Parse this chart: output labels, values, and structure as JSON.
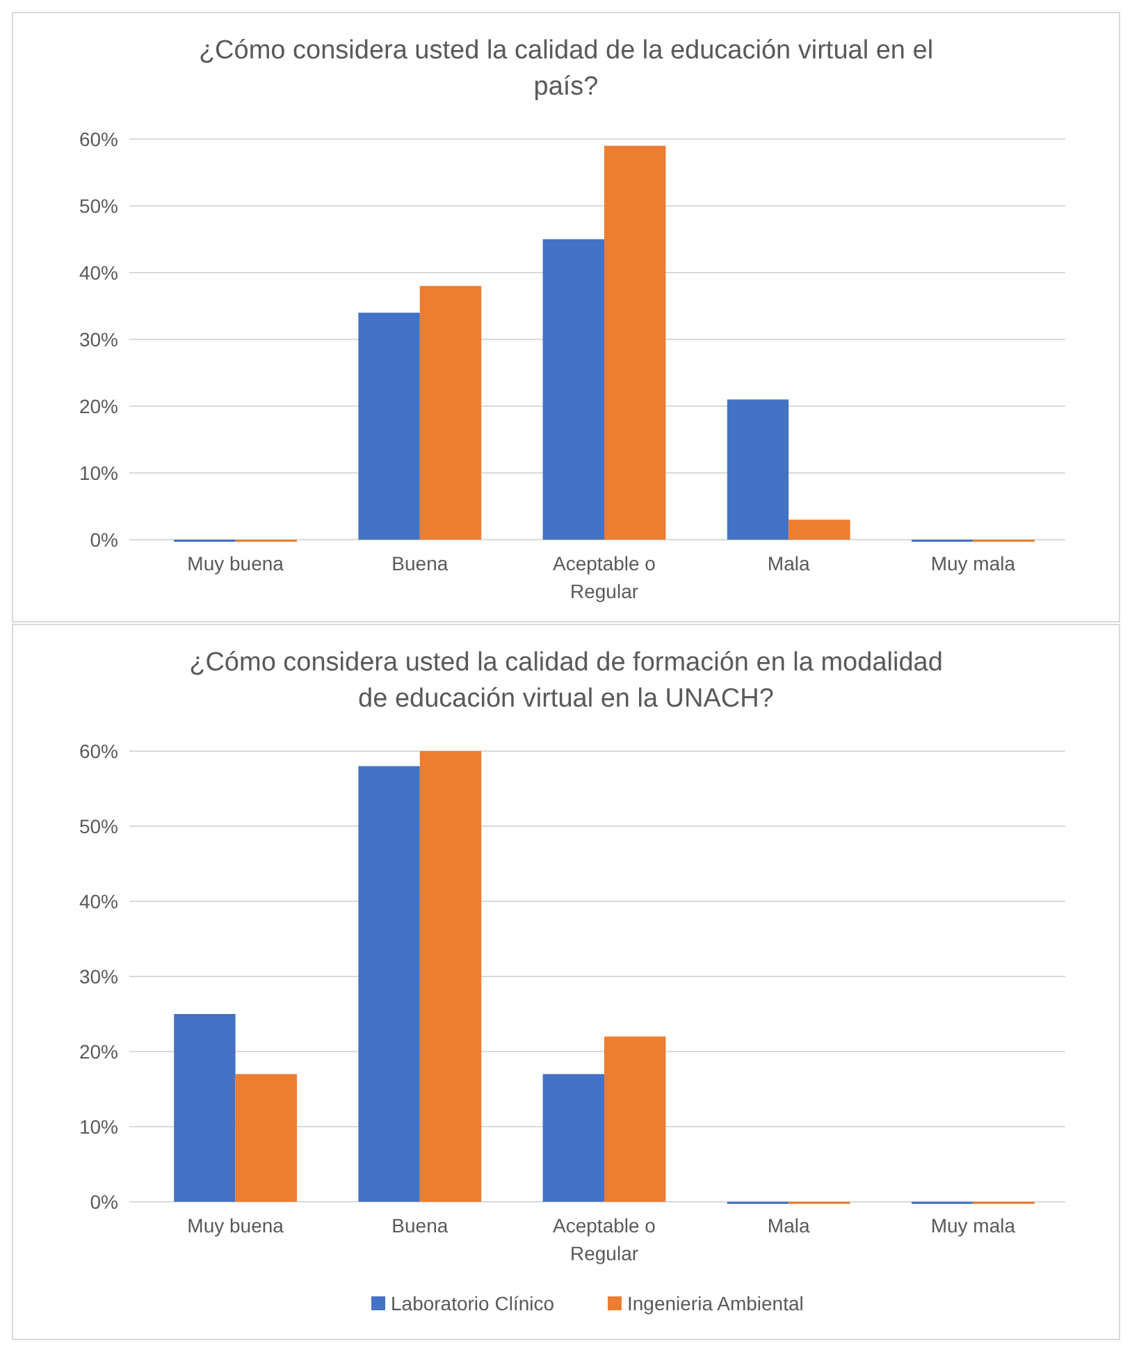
{
  "chart_data": [
    {
      "type": "bar",
      "title": "¿Cómo considera usted la calidad de la educación virtual en el país?",
      "categories": [
        "Muy buena",
        "Buena",
        "Aceptable o Regular",
        "Mala",
        "Muy mala"
      ],
      "series": [
        {
          "color": "#4472c4",
          "values": [
            0,
            34,
            45,
            21,
            0
          ]
        },
        {
          "color": "#ed7d31",
          "values": [
            0,
            38,
            59,
            3,
            0
          ]
        }
      ],
      "ylim": [
        0,
        60
      ],
      "yticks": [
        {
          "value": 0,
          "label": "0%"
        },
        {
          "value": 10,
          "label": "10%"
        },
        {
          "value": 20,
          "label": "20%"
        },
        {
          "value": 30,
          "label": "30%"
        },
        {
          "value": 40,
          "label": "40%"
        },
        {
          "value": 50,
          "label": "50%"
        },
        {
          "value": 60,
          "label": "60%"
        }
      ],
      "grid": "y",
      "legend": false
    },
    {
      "type": "bar",
      "title": "¿Cómo considera usted la calidad de formación en la modalidad de educación virtual en la UNACH?",
      "categories": [
        "Muy buena",
        "Buena",
        "Aceptable o Regular",
        "Mala",
        "Muy mala"
      ],
      "series": [
        {
          "name": "Laboratorio Clínico",
          "color": "#4472c4",
          "values": [
            25,
            58,
            17,
            0,
            0
          ]
        },
        {
          "name": "Ingenieria Ambiental",
          "color": "#ed7d31",
          "values": [
            17,
            60,
            22,
            0,
            0
          ]
        }
      ],
      "ylim": [
        0,
        60
      ],
      "yticks": [
        {
          "value": 0,
          "label": "0%"
        },
        {
          "value": 10,
          "label": "10%"
        },
        {
          "value": 20,
          "label": "20%"
        },
        {
          "value": 30,
          "label": "30%"
        },
        {
          "value": 40,
          "label": "40%"
        },
        {
          "value": 50,
          "label": "50%"
        },
        {
          "value": 60,
          "label": "60%"
        }
      ],
      "grid": "y",
      "legend": "bottom"
    }
  ]
}
